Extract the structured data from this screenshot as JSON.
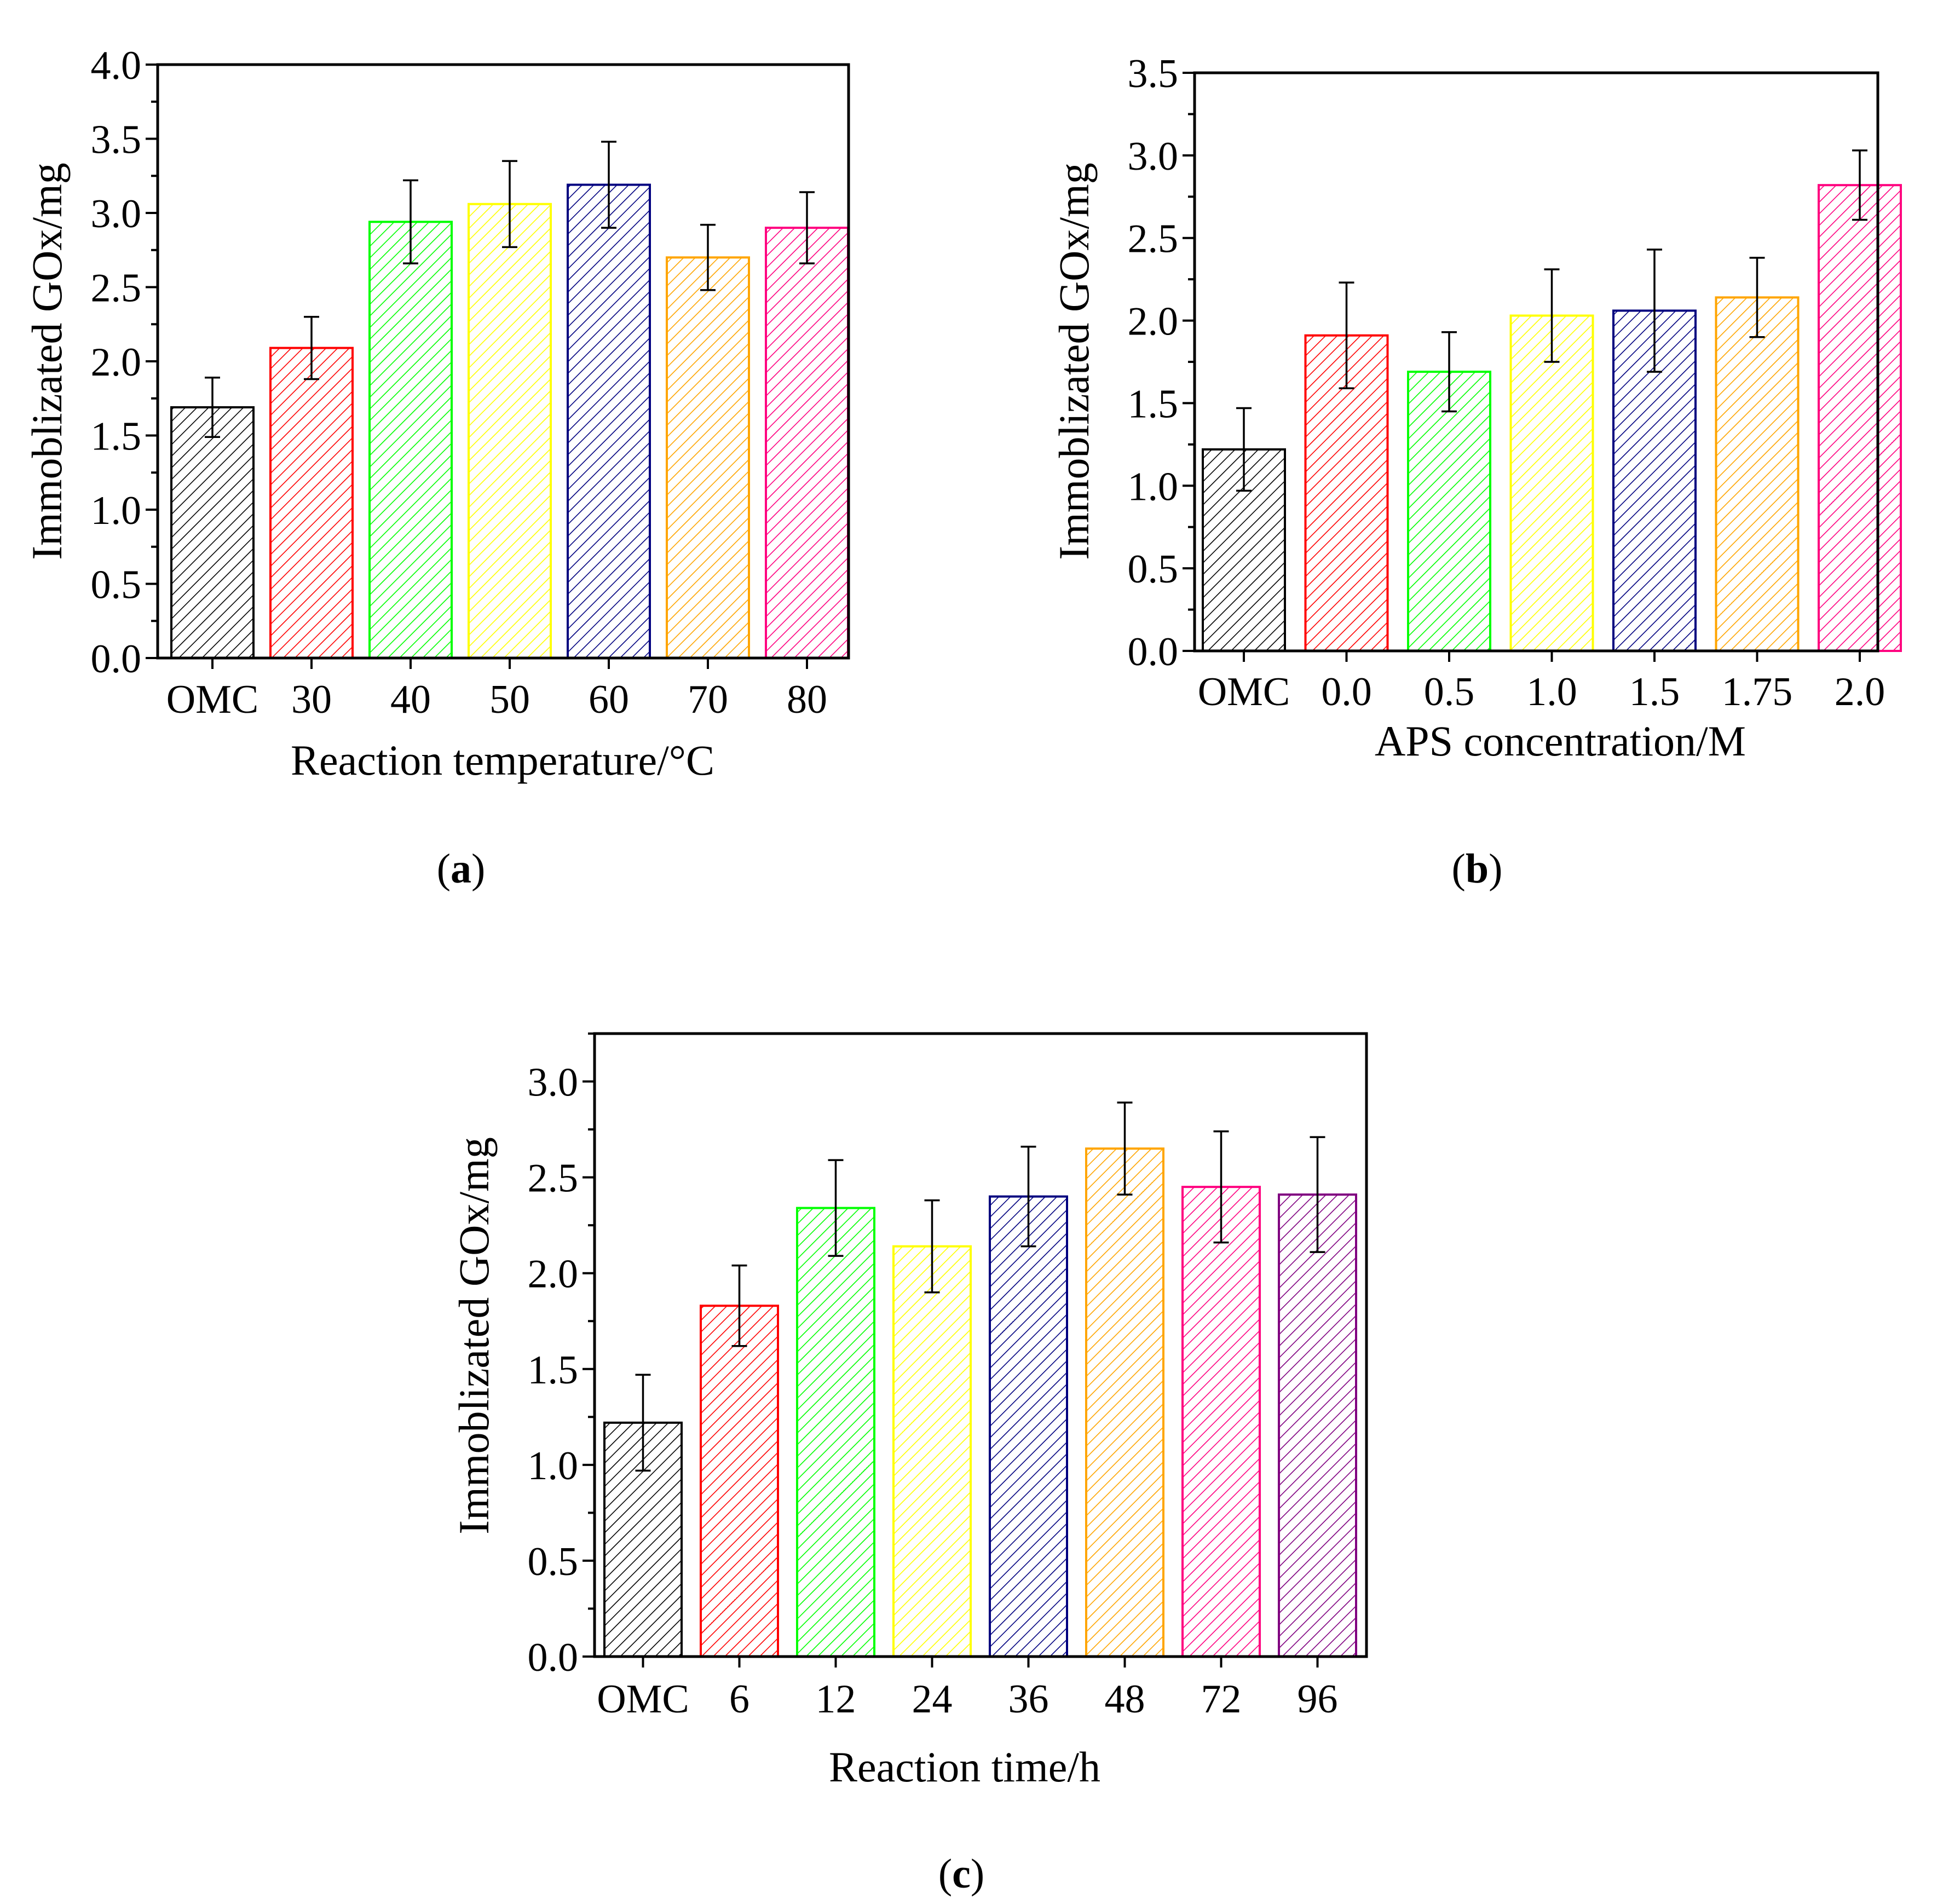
{
  "figure": {
    "panels": [
      "a",
      "b",
      "c"
    ]
  },
  "chart_data": [
    {
      "id": "a",
      "type": "bar",
      "panel_label": "a",
      "title": "",
      "xlabel": "Reaction temperature/°C",
      "ylabel": "Immoblizated GOx/mg",
      "categories": [
        "OMC",
        "30",
        "40",
        "50",
        "60",
        "70",
        "80"
      ],
      "values": [
        1.69,
        2.09,
        2.94,
        3.06,
        3.19,
        2.7,
        2.9
      ],
      "errors": [
        0.2,
        0.21,
        0.28,
        0.29,
        0.29,
        0.22,
        0.24
      ],
      "colors": [
        "#000000",
        "#ff0000",
        "#00ff00",
        "#ffff00",
        "#00007f",
        "#ffa500",
        "#ff007f"
      ],
      "ylim": [
        0,
        4.0
      ],
      "yticks": [
        "0.0",
        "0.5",
        "1.0",
        "1.5",
        "2.0",
        "2.5",
        "3.0",
        "3.5",
        "4.0"
      ],
      "grid": false
    },
    {
      "id": "b",
      "type": "bar",
      "panel_label": "b",
      "title": "",
      "xlabel": "APS concentration/M",
      "ylabel": "Immoblizated GOx/mg",
      "categories": [
        "OMC",
        "0.0",
        "0.5",
        "1.0",
        "1.5",
        "1.75",
        "2.0"
      ],
      "values": [
        1.22,
        1.91,
        1.69,
        2.03,
        2.06,
        2.14,
        2.82
      ],
      "errors": [
        0.25,
        0.32,
        0.24,
        0.28,
        0.37,
        0.24,
        0.21
      ],
      "colors": [
        "#000000",
        "#ff0000",
        "#00ff00",
        "#ffff00",
        "#00007f",
        "#ffa500",
        "#ff007f"
      ],
      "ylim": [
        0,
        3.5
      ],
      "yticks": [
        "0.0",
        "0.5",
        "1.0",
        "1.5",
        "2.0",
        "2.5",
        "3.0",
        "3.5"
      ],
      "grid": false
    },
    {
      "id": "c",
      "type": "bar",
      "panel_label": "c",
      "title": "",
      "xlabel": "Reaction time/h",
      "ylabel": "Immoblizated GOx/mg",
      "categories": [
        "OMC",
        "6",
        "12",
        "24",
        "36",
        "48",
        "72",
        "96"
      ],
      "values": [
        1.22,
        1.83,
        2.34,
        2.14,
        2.4,
        2.65,
        2.45,
        2.41
      ],
      "errors": [
        0.25,
        0.21,
        0.25,
        0.24,
        0.26,
        0.24,
        0.29,
        0.3
      ],
      "colors": [
        "#000000",
        "#ff0000",
        "#00ff00",
        "#ffff00",
        "#00007f",
        "#ffa500",
        "#ff007f",
        "#800080"
      ],
      "ylim": [
        0,
        3.25
      ],
      "yticks": [
        "0.0",
        "0.5",
        "1.0",
        "1.5",
        "2.0",
        "2.5",
        "3.0"
      ],
      "grid": false
    }
  ]
}
